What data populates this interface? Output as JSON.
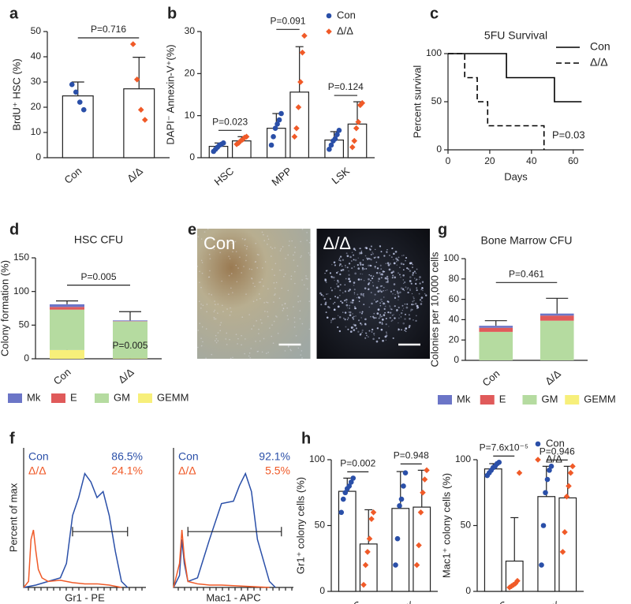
{
  "chart_data": [
    {
      "type": "bar",
      "panel": "a",
      "ylabel": "BrdU⁺ HSC (%)",
      "categories": [
        "Con",
        "Δ/Δ"
      ],
      "values": [
        24.5,
        27.3
      ],
      "errors": [
        5.5,
        12.5
      ],
      "points": [
        [
          29,
          26,
          22,
          19
        ],
        [
          45,
          31,
          19,
          15
        ]
      ],
      "colors": [
        "#2a4fa8",
        "#f05a28"
      ],
      "pvalue": "P=0.716",
      "ylim": [
        0,
        50
      ],
      "yticks": [
        0,
        10,
        20,
        30,
        40,
        50
      ]
    },
    {
      "type": "grouped_bar",
      "panel": "b",
      "ylabel": "DAPI⁻ Annexin-V⁺(%)",
      "categories": [
        "HSC",
        "MPP",
        "LSK"
      ],
      "series": [
        {
          "name": "Con",
          "color": "#2a4fa8",
          "values": [
            2.7,
            7.0,
            4.2
          ],
          "errors": [
            0.8,
            3.5,
            2.0
          ],
          "points": [
            [
              1.5,
              2.0,
              2.5,
              3.0,
              3.2,
              3.5
            ],
            [
              3,
              5,
              7,
              8,
              9,
              10.5
            ],
            [
              2,
              3,
              4,
              4.5,
              5.5,
              6.5
            ]
          ]
        },
        {
          "name": "Δ/Δ",
          "color": "#f05a28",
          "values": [
            4.0,
            15.6,
            8.0
          ],
          "errors": [
            1.0,
            10.8,
            5.3
          ],
          "points": [
            [
              3.2,
              3.5,
              4.0,
              4.3,
              4.8,
              5.0
            ],
            [
              5,
              7,
              12,
              18,
              25,
              29
            ],
            [
              2.5,
              4,
              7,
              8.5,
              12.5,
              13
            ]
          ]
        }
      ],
      "pvalues": [
        "P=0.023",
        "P=0.091",
        "P=0.124"
      ],
      "legend": "upper right",
      "ylim": [
        0,
        30
      ],
      "yticks": [
        0,
        10,
        20,
        30
      ]
    },
    {
      "type": "line",
      "panel": "c",
      "title": "5FU Survival",
      "xlabel": "Days",
      "ylabel": "Percent survival",
      "series": [
        {
          "name": "Con",
          "color": "#000000",
          "dash": false,
          "x": [
            0,
            28,
            28,
            51,
            51,
            64
          ],
          "values": [
            100,
            100,
            75,
            75,
            50,
            50
          ]
        },
        {
          "name": "Δ/Δ",
          "color": "#000000",
          "dash": true,
          "x": [
            0,
            8,
            8,
            14,
            14,
            19,
            19,
            46,
            46
          ],
          "values": [
            100,
            100,
            75,
            75,
            50,
            50,
            25,
            25,
            0
          ]
        }
      ],
      "annotation": "P=0.03",
      "legend": "upper right",
      "xlim": [
        0,
        65
      ],
      "xticks": [
        0,
        20,
        40,
        60
      ],
      "ylim": [
        0,
        100
      ],
      "yticks": [
        0,
        50,
        100
      ]
    },
    {
      "type": "stacked_bar",
      "panel": "d",
      "title": "HSC CFU",
      "ylabel": "Colony formation (%)",
      "categories": [
        "Con",
        "Δ/Δ"
      ],
      "series": [
        {
          "name": "Mk",
          "color": "#6b75c7",
          "values": [
            4,
            1
          ],
          "errors": [
            5,
            13
          ]
        },
        {
          "name": "E",
          "color": "#e05a5a",
          "values": [
            4,
            0.5
          ]
        },
        {
          "name": "GM",
          "color": "#b5dba0",
          "values": [
            60,
            55
          ]
        },
        {
          "name": "GEMM",
          "color": "#f7ef7a",
          "values": [
            13,
            0.5
          ],
          "errors": [
            9,
            4
          ]
        }
      ],
      "pvalue": "P=0.005",
      "annotation": "P=0.005",
      "ylim": [
        0,
        150
      ],
      "yticks": [
        0,
        50,
        100,
        150
      ]
    },
    {
      "type": "image",
      "panel": "e",
      "labels": [
        "Con",
        "Δ/Δ"
      ]
    },
    {
      "type": "stacked_bar",
      "panel": "g",
      "title": "Bone Marrow CFU",
      "ylabel": "Colonies per 10,000 cells",
      "categories": [
        "Con",
        "Δ/Δ"
      ],
      "series": [
        {
          "name": "Mk",
          "color": "#6b75c7",
          "values": [
            2,
            2
          ],
          "errors": [
            5,
            15
          ]
        },
        {
          "name": "E",
          "color": "#e05a5a",
          "values": [
            4,
            5
          ]
        },
        {
          "name": "GM",
          "color": "#b5dba0",
          "values": [
            28,
            39
          ]
        },
        {
          "name": "GEMM",
          "color": "#f7ef7a",
          "values": [
            0,
            0
          ],
          "errors": [
            2,
            1
          ]
        }
      ],
      "pvalue": "P=0.461",
      "ylim": [
        0,
        100
      ],
      "yticks": [
        0,
        20,
        40,
        60,
        80,
        100
      ]
    },
    {
      "type": "flow",
      "panel": "f",
      "ylabel": "Percent of max",
      "xlabel": "Gr1 - PE",
      "gate": [
        40,
        85
      ],
      "xlim": [
        0,
        100
      ],
      "ylim": [
        0,
        100
      ],
      "series": [
        {
          "name": "Con",
          "label": "86.5%",
          "color": "#2a4fa8",
          "x": [
            0,
            10,
            20,
            30,
            35,
            40,
            45,
            50,
            55,
            60,
            65,
            70,
            75,
            80,
            85
          ],
          "values": [
            0,
            2,
            5,
            8,
            20,
            60,
            75,
            95,
            88,
            75,
            80,
            60,
            30,
            5,
            0
          ]
        },
        {
          "name": "Δ/Δ",
          "label": "24.1%",
          "color": "#f05a28",
          "x": [
            0,
            4,
            6,
            8,
            10,
            12,
            15,
            20,
            30,
            40,
            50,
            60,
            70,
            80
          ],
          "values": [
            0,
            5,
            40,
            48,
            30,
            15,
            8,
            5,
            6,
            4,
            3,
            3,
            2,
            0
          ]
        }
      ]
    },
    {
      "type": "flow",
      "xlabel": "Mac1 - APC",
      "gate": [
        12,
        90
      ],
      "xlim": [
        0,
        100
      ],
      "ylim": [
        0,
        100
      ],
      "series": [
        {
          "name": "Con",
          "label": "92.1%",
          "color": "#2a4fa8",
          "x": [
            0,
            5,
            7,
            9,
            12,
            20,
            30,
            40,
            50,
            55,
            60,
            65,
            70,
            80,
            85
          ],
          "values": [
            0,
            10,
            40,
            20,
            5,
            8,
            40,
            70,
            72,
            85,
            95,
            80,
            40,
            5,
            0
          ]
        },
        {
          "name": "Δ/Δ",
          "label": "5.5%",
          "color": "#f05a28",
          "x": [
            0,
            5,
            7,
            9,
            12,
            20,
            30,
            40,
            60,
            80
          ],
          "values": [
            0,
            20,
            48,
            25,
            5,
            3,
            2,
            2,
            1,
            0
          ]
        }
      ]
    },
    {
      "type": "grouped_bar",
      "panel": "h",
      "ylabel": "Gr1⁺ colony cells (%)",
      "categories": [
        "HSC",
        "LSK"
      ],
      "series": [
        {
          "name": "Con",
          "color": "#2a4fa8",
          "values": [
            76,
            63
          ],
          "errors": [
            10,
            28
          ],
          "points": [
            [
              60,
              70,
              75,
              78,
              80,
              83,
              86
            ],
            [
              20,
              40,
              65,
              70,
              80,
              90
            ]
          ]
        },
        {
          "name": "Δ/Δ",
          "color": "#f05a28",
          "values": [
            36,
            64
          ],
          "errors": [
            26,
            28
          ],
          "points": [
            [
              5,
              20,
              30,
              40,
              55,
              60
            ],
            [
              20,
              35,
              60,
              75,
              85,
              92
            ]
          ]
        }
      ],
      "pvalues": [
        "P=0.002",
        "P=0.948"
      ],
      "ylim": [
        0,
        100
      ],
      "yticks": [
        0,
        50,
        100
      ]
    },
    {
      "type": "grouped_bar",
      "ylabel": "Mac1⁺ colony cells (%)",
      "categories": [
        "HSC",
        "LSK"
      ],
      "series": [
        {
          "name": "Con",
          "color": "#2a4fa8",
          "values": [
            93,
            72
          ],
          "errors": [
            4,
            23
          ],
          "points": [
            [
              88,
              90,
              92,
              94,
              95,
              97,
              98
            ],
            [
              20,
              50,
              75,
              85,
              92,
              95
            ]
          ]
        },
        {
          "name": "Δ/Δ",
          "color": "#f05a28",
          "values": [
            23,
            71
          ],
          "errors": [
            33,
            24
          ],
          "points": [
            [
              3,
              4,
              5,
              6,
              8,
              90
            ],
            [
              30,
              45,
              72,
              80,
              90,
              95
            ]
          ]
        }
      ],
      "pvalues": [
        "P=7.6x10⁻⁵",
        "P=0.946"
      ],
      "legend": "upper right",
      "ylim": [
        0,
        100
      ],
      "yticks": [
        0,
        50,
        100
      ]
    }
  ]
}
